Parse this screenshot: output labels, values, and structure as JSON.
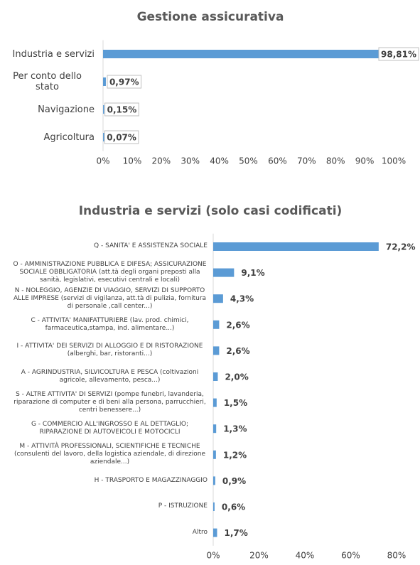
{
  "chart_data": [
    {
      "type": "hbar",
      "title": "Gestione assicurativa",
      "categories": [
        "Industria e servizi",
        "Per conto dello stato",
        "Navigazione",
        "Agricoltura"
      ],
      "values": [
        98.81,
        0.97,
        0.15,
        0.07
      ],
      "value_labels": [
        "98,81%",
        "0,97%",
        "0,15%",
        "0,07%"
      ],
      "color": "#5b9bd5",
      "xlim": [
        0,
        100
      ],
      "xticks": [
        {
          "value": 0,
          "label": "0%"
        },
        {
          "value": 10,
          "label": "10%"
        },
        {
          "value": 20,
          "label": "20%"
        },
        {
          "value": 30,
          "label": "30%"
        },
        {
          "value": 40,
          "label": "40%"
        },
        {
          "value": 50,
          "label": "50%"
        },
        {
          "value": 60,
          "label": "60%"
        },
        {
          "value": 70,
          "label": "70%"
        },
        {
          "value": 80,
          "label": "80%"
        },
        {
          "value": 90,
          "label": "90%"
        },
        {
          "value": 100,
          "label": "100%"
        }
      ],
      "grid": false
    },
    {
      "type": "hbar",
      "title": "Industria e servizi (solo casi codificati)",
      "categories": [
        "Q - SANITA' E ASSISTENZA SOCIALE",
        "O - AMMINISTRAZIONE PUBBLICA E DIFESA; ASSICURAZIONE SOCIALE OBBLIGATORIA (att.tà degli organi preposti alla sanità, legislativi, esecutivi centrali e locali)",
        "N - NOLEGGIO, AGENZIE DI VIAGGIO, SERVIZI DI SUPPORTO ALLE IMPRESE (servizi di vigilanza, att.tà di pulizia, fornitura di personale ,call center...)",
        "C - ATTIVITA' MANIFATTURIERE (lav. prod. chimici, farmaceutica,stampa, ind. alimentare...)",
        "I - ATTIVITA' DEI SERVIZI DI ALLOGGIO E DI RISTORAZIONE (alberghi, bar, ristoranti...)",
        "A - AGRINDUSTRIA, SILVICOLTURA E PESCA (coltivazioni agricole, allevamento, pesca...)",
        "S - ALTRE ATTIVITA' DI SERVIZI (pompe funebri, lavanderia, riparazione di computer e di beni alla persona, parrucchieri, centri benessere...)",
        "G - COMMERCIO ALL'INGROSSO E AL DETTAGLIO; RIPARAZIONE DI AUTOVEICOLI E MOTOCICLI",
        "M - ATTIVITÀ PROFESSIONALI, SCIENTIFICHE E TECNICHE (consulenti del lavoro, della logistica aziendale, di direzione aziendale...)",
        "H - TRASPORTO E MAGAZZINAGGIO",
        "P - ISTRUZIONE",
        "Altro"
      ],
      "values": [
        72.2,
        9.1,
        4.3,
        2.6,
        2.6,
        2.0,
        1.5,
        1.3,
        1.2,
        0.9,
        0.6,
        1.7
      ],
      "value_labels": [
        "72,2%",
        "9,1%",
        "4,3%",
        "2,6%",
        "2,6%",
        "2,0%",
        "1,5%",
        "1,3%",
        "1,2%",
        "0,9%",
        "0,6%",
        "1,7%"
      ],
      "color": "#5b9bd5",
      "xlim": [
        0,
        80
      ],
      "xticks": [
        {
          "value": 0,
          "label": "0%"
        },
        {
          "value": 20,
          "label": "20%"
        },
        {
          "value": 40,
          "label": "40%"
        },
        {
          "value": 60,
          "label": "60%"
        },
        {
          "value": 80,
          "label": "80%"
        }
      ],
      "grid": false
    }
  ]
}
